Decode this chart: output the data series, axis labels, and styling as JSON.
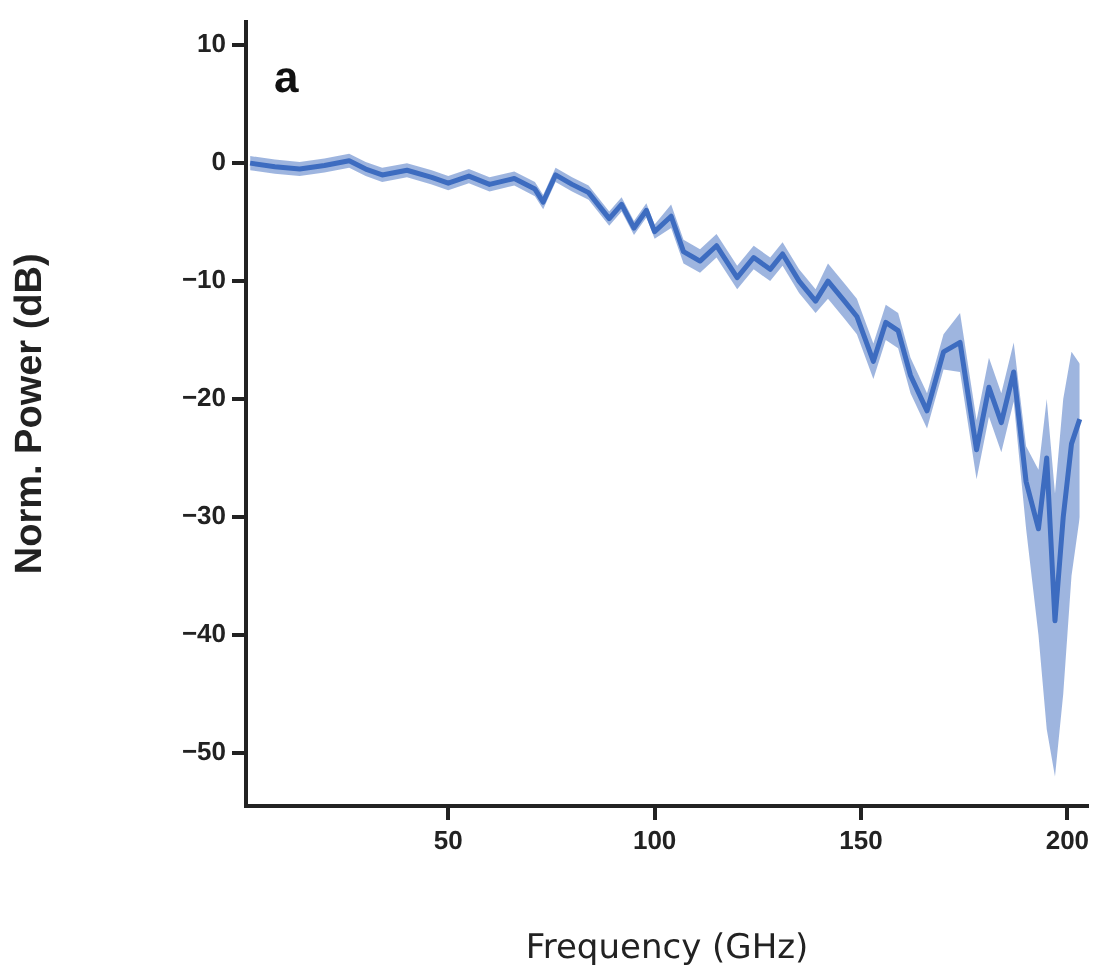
{
  "chart_data": {
    "type": "line",
    "xlabel": "Frequency (GHz)",
    "ylabel": "Norm. Power (dB)",
    "annotations": [
      "a"
    ],
    "x": [
      2,
      8,
      14,
      20,
      26,
      30,
      34,
      40,
      46,
      50,
      55,
      60,
      66,
      71,
      73,
      76,
      80,
      84,
      89,
      92,
      95,
      98,
      100,
      104,
      107,
      111,
      115,
      120,
      124,
      128,
      131,
      135,
      139,
      142,
      146,
      149,
      153,
      156,
      159,
      162,
      166,
      170,
      174,
      178,
      181,
      184,
      187,
      190,
      193,
      195,
      197,
      199,
      201,
      203
    ],
    "series": [
      {
        "color": "#3d6cc0",
        "values": [
          0,
          -0.3,
          -0.5,
          -0.2,
          0.2,
          -0.5,
          -1,
          -0.6,
          -1.2,
          -1.7,
          -1.1,
          -1.8,
          -1.3,
          -2.2,
          -3.3,
          -1,
          -1.8,
          -2.5,
          -4.7,
          -3.5,
          -5.5,
          -4,
          -5.8,
          -4.5,
          -7.5,
          -8.3,
          -7,
          -9.7,
          -8,
          -9,
          -7.7,
          -10,
          -11.7,
          -10,
          -11.7,
          -13,
          -16.8,
          -13.5,
          -14.2,
          -18,
          -21,
          -16,
          -15.2,
          -24.3,
          -19,
          -22,
          -17.7,
          -27,
          -31,
          -25,
          -38.8,
          -30,
          -23.8,
          -21.7
        ],
        "lower": [
          -0.6,
          -0.9,
          -1.1,
          -0.8,
          -0.4,
          -1.1,
          -1.6,
          -1.2,
          -1.8,
          -2.3,
          -1.7,
          -2.4,
          -1.9,
          -2.8,
          -3.9,
          -1.6,
          -2.4,
          -3.1,
          -5.3,
          -4.1,
          -6.1,
          -4.6,
          -6.4,
          -5.5,
          -8.5,
          -9.3,
          -8,
          -10.7,
          -9,
          -10,
          -8.7,
          -11,
          -12.7,
          -11.5,
          -13.2,
          -14.5,
          -18.3,
          -15,
          -15.7,
          -19.5,
          -22.5,
          -17.5,
          -17.7,
          -26.8,
          -21.5,
          -24.5,
          -20.2,
          -31,
          -40,
          -48,
          -52,
          -45,
          -35,
          -30
        ],
        "upper": [
          0.6,
          0.3,
          0.1,
          0.4,
          0.8,
          0.1,
          -0.4,
          0,
          -0.6,
          -1.1,
          -0.5,
          -1.2,
          -0.7,
          -1.6,
          -2.7,
          -0.4,
          -1.2,
          -1.9,
          -4.1,
          -2.9,
          -4.9,
          -3.4,
          -5.2,
          -3.5,
          -6.5,
          -7.3,
          -6,
          -8.7,
          -7,
          -8,
          -6.7,
          -9,
          -10.7,
          -8.5,
          -10.2,
          -11.5,
          -15.3,
          -12,
          -12.7,
          -16.5,
          -19.5,
          -14.5,
          -12.7,
          -21.8,
          -16.5,
          -19.5,
          -15.2,
          -24,
          -26,
          -20,
          -28,
          -20,
          -16,
          -17
        ]
      }
    ],
    "xlim": [
      1,
      205
    ],
    "xticks": [
      50,
      100,
      150,
      200
    ],
    "ylim": [
      -54.5,
      12
    ],
    "yticks": [
      {
        "value": -50,
        "label": "−50"
      },
      {
        "value": -40,
        "label": "−40"
      },
      {
        "value": -30,
        "label": "−30"
      },
      {
        "value": -20,
        "label": "−20"
      },
      {
        "value": -10,
        "label": "−10"
      },
      0,
      10
    ],
    "grid": false,
    "legend": false
  }
}
